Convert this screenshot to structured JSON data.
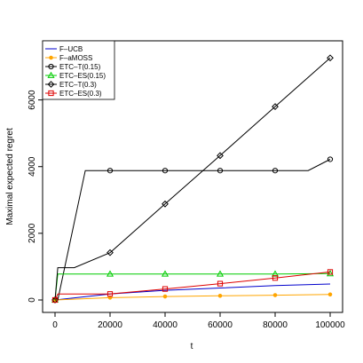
{
  "chart_data": {
    "type": "line",
    "title": "",
    "xlabel": "t",
    "ylabel": "Maximal expected regret",
    "xlim": [
      0,
      100000
    ],
    "ylim": [
      0,
      7400
    ],
    "x_ticks": [
      0,
      20000,
      40000,
      60000,
      80000,
      100000
    ],
    "x_tick_labels": [
      "0",
      "20000",
      "40000",
      "60000",
      "80000",
      "100000"
    ],
    "y_ticks": [
      0,
      2000,
      4000,
      6000
    ],
    "y_tick_labels": [
      "0",
      "2000",
      "4000",
      "6000"
    ],
    "grid": false,
    "legend_position": "top-left",
    "series": [
      {
        "name": "F–UCB",
        "color": "#0000cc",
        "marker": "none",
        "x": [
          0,
          20000,
          40000,
          60000,
          80000,
          100000
        ],
        "y": [
          0,
          180,
          290,
          360,
          430,
          480
        ]
      },
      {
        "name": "F–aMOSS",
        "color": "#ffa500",
        "marker": "dot",
        "x": [
          0,
          20000,
          40000,
          60000,
          80000,
          100000
        ],
        "y": [
          0,
          70,
          105,
          125,
          145,
          165
        ]
      },
      {
        "name": "ETC–T(0.15)",
        "color": "#000000",
        "marker": "circle",
        "x": [
          0,
          1000,
          11000,
          20000,
          40000,
          60000,
          80000,
          92000,
          100000
        ],
        "y": [
          0,
          0,
          3880,
          3880,
          3880,
          3880,
          3880,
          3880,
          4220
        ],
        "marker_x": [
          0,
          20000,
          40000,
          60000,
          80000,
          100000
        ],
        "marker_y": [
          0,
          3880,
          3880,
          3880,
          3880,
          4220
        ]
      },
      {
        "name": "ETC–ES(0.15)",
        "color": "#00cc00",
        "marker": "triangle",
        "x": [
          0,
          1000,
          20000,
          40000,
          60000,
          80000,
          100000
        ],
        "y": [
          0,
          780,
          780,
          780,
          780,
          780,
          790
        ],
        "marker_x": [
          0,
          20000,
          40000,
          60000,
          80000,
          100000
        ],
        "marker_y": [
          0,
          780,
          780,
          780,
          780,
          790
        ]
      },
      {
        "name": "ETC–T(0.3)",
        "color": "#000000",
        "marker": "diamond",
        "x": [
          0,
          1000,
          7000,
          20000,
          40000,
          60000,
          80000,
          100000
        ],
        "y": [
          0,
          970,
          970,
          1420,
          2880,
          4330,
          5800,
          7260
        ],
        "marker_x": [
          0,
          20000,
          40000,
          60000,
          80000,
          100000
        ],
        "marker_y": [
          0,
          1420,
          2880,
          4330,
          5800,
          7260
        ]
      },
      {
        "name": "ETC–ES(0.3)",
        "color": "#dd0000",
        "marker": "square",
        "x": [
          0,
          1000,
          20000,
          40000,
          60000,
          80000,
          100000
        ],
        "y": [
          0,
          180,
          180,
          330,
          490,
          660,
          840
        ],
        "marker_x": [
          0,
          20000,
          40000,
          60000,
          80000,
          100000
        ],
        "marker_y": [
          0,
          180,
          330,
          490,
          660,
          840
        ]
      }
    ]
  }
}
